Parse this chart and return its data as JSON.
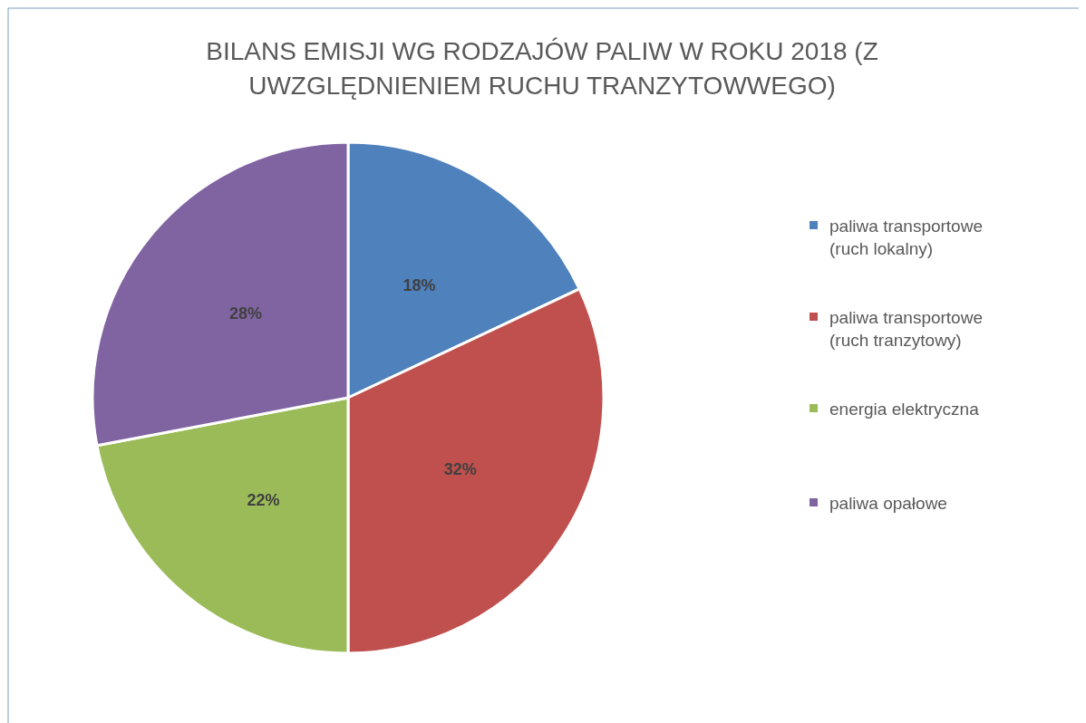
{
  "chart_data": {
    "type": "pie",
    "title": "BILANS EMISJI WG RODZAJÓW PALIW W ROKU 2018 (Z UWZGLĘDNIENIEM RUCHU TRANZYTOWWEGO)",
    "categories": [
      "paliwa transportowe (ruch lokalny)",
      "paliwa transportowe (ruch tranzytowy)",
      "energia elektryczna",
      "paliwa opałowe"
    ],
    "values": [
      18,
      32,
      22,
      28
    ],
    "colors": [
      "#4f81bd",
      "#c0504d",
      "#9bbb59",
      "#8064a2"
    ],
    "value_labels": [
      "18%",
      "32%",
      "22%",
      "28%"
    ],
    "legend": "right"
  }
}
